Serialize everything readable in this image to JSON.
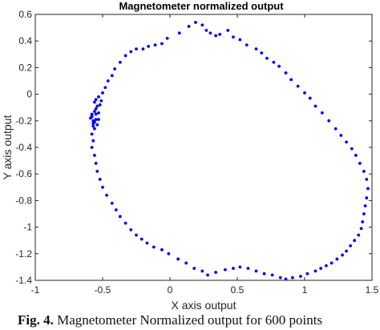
{
  "chart_data": {
    "type": "scatter",
    "title": "Magnetometer normalized output",
    "xlabel": "X axis output",
    "ylabel": "Y axis output",
    "xlim": [
      -1,
      1.5
    ],
    "ylim": [
      -1.4,
      0.6
    ],
    "xticks": [
      -1,
      -0.5,
      0,
      0.5,
      1,
      1.5
    ],
    "yticks": [
      -1.4,
      -1.2,
      -1,
      -0.8,
      -0.6,
      -0.4,
      -0.2,
      0,
      0.2,
      0.4,
      0.6
    ],
    "xtick_labels": [
      "-1",
      "-0.5",
      "0",
      "0.5",
      "1",
      "1.5"
    ],
    "ytick_labels": [
      "-1.4",
      "-1.2",
      "-1",
      "-0.8",
      "-0.6",
      "-0.4",
      "-0.2",
      "0",
      "0.2",
      "0.4",
      "0.6"
    ],
    "grid": false,
    "legend": "none",
    "marker_color": "#0000ff",
    "series": [
      {
        "x": [
          0.07,
          0.14,
          0.19,
          0.24,
          0.27,
          0.3,
          0.34,
          0.37,
          0.43,
          0.47,
          0.52,
          0.57,
          0.64,
          0.68,
          0.72,
          0.77,
          0.81,
          0.86,
          0.9,
          0.95,
          1.0,
          1.04,
          1.08,
          1.13,
          1.18,
          1.23,
          1.27,
          1.31,
          1.35,
          1.38,
          1.41,
          1.44,
          1.46,
          1.47,
          1.46,
          1.45,
          1.44,
          1.43,
          1.42,
          1.4,
          1.37,
          1.34,
          1.31,
          1.28,
          1.24,
          1.2,
          1.16,
          1.12,
          1.08,
          1.02,
          0.97,
          0.91,
          0.86,
          0.82,
          0.76,
          0.7,
          0.64,
          0.58,
          0.52,
          0.47,
          0.41,
          0.34,
          0.28,
          0.24,
          0.18,
          0.12,
          0.06,
          -0.01,
          -0.06,
          -0.12,
          -0.17,
          -0.21,
          -0.25,
          -0.29,
          -0.33,
          -0.37,
          -0.4,
          -0.43,
          -0.47,
          -0.5,
          -0.52,
          -0.54,
          -0.55,
          -0.56,
          -0.58,
          -0.57,
          -0.58,
          -0.56,
          -0.57,
          -0.55,
          -0.58,
          -0.56,
          -0.59,
          -0.55,
          -0.57,
          -0.54,
          -0.58,
          -0.56,
          -0.53,
          -0.57,
          -0.55,
          -0.58,
          -0.54,
          -0.56,
          -0.53,
          -0.55,
          -0.52,
          -0.53,
          -0.51,
          -0.5,
          -0.48,
          -0.46,
          -0.43,
          -0.41,
          -0.37,
          -0.33,
          -0.29,
          -0.25,
          -0.2,
          -0.16,
          -0.11,
          -0.06,
          -0.02
        ],
        "y": [
          0.46,
          0.51,
          0.54,
          0.52,
          0.48,
          0.46,
          0.44,
          0.45,
          0.48,
          0.43,
          0.41,
          0.37,
          0.34,
          0.31,
          0.27,
          0.24,
          0.21,
          0.16,
          0.11,
          0.06,
          0.01,
          -0.03,
          -0.09,
          -0.14,
          -0.2,
          -0.26,
          -0.31,
          -0.36,
          -0.41,
          -0.46,
          -0.52,
          -0.58,
          -0.64,
          -0.71,
          -0.78,
          -0.84,
          -0.9,
          -0.96,
          -1.01,
          -1.06,
          -1.1,
          -1.14,
          -1.18,
          -1.21,
          -1.24,
          -1.27,
          -1.29,
          -1.31,
          -1.33,
          -1.35,
          -1.37,
          -1.38,
          -1.39,
          -1.38,
          -1.36,
          -1.35,
          -1.33,
          -1.31,
          -1.3,
          -1.31,
          -1.32,
          -1.34,
          -1.36,
          -1.33,
          -1.31,
          -1.27,
          -1.24,
          -1.2,
          -1.17,
          -1.15,
          -1.12,
          -1.09,
          -1.06,
          -1.02,
          -0.97,
          -0.92,
          -0.87,
          -0.82,
          -0.76,
          -0.7,
          -0.64,
          -0.58,
          -0.52,
          -0.46,
          -0.4,
          -0.35,
          -0.3,
          -0.26,
          -0.22,
          -0.19,
          -0.17,
          -0.21,
          -0.18,
          -0.15,
          -0.2,
          -0.23,
          -0.16,
          -0.13,
          -0.19,
          -0.24,
          -0.11,
          -0.15,
          -0.09,
          -0.06,
          -0.14,
          -0.04,
          -0.08,
          -0.02,
          -0.05,
          0.01,
          0.05,
          0.1,
          0.14,
          0.19,
          0.24,
          0.29,
          0.32,
          0.34,
          0.34,
          0.36,
          0.37,
          0.38,
          0.42
        ]
      }
    ]
  },
  "caption": {
    "label": "Fig. 4.",
    "text": " Magnetometer Normalized output for 600 points"
  }
}
